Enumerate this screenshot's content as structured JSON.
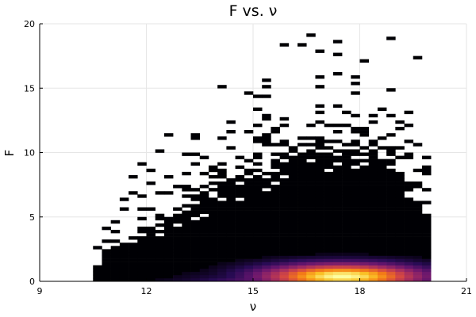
{
  "chart_data": {
    "type": "heatmap",
    "title": "F vs. ν",
    "xlabel": "ν",
    "ylabel": "F",
    "xlim": [
      9,
      21
    ],
    "ylim": [
      0,
      20
    ],
    "xticks": [
      9,
      12,
      15,
      18,
      21
    ],
    "yticks": [
      0,
      5,
      10,
      15,
      20
    ],
    "grid": true,
    "legend": "none",
    "colormap": "inferno",
    "colors": {
      "low": "#000004",
      "mid_low": "#420a68",
      "mid": "#932667",
      "mid_high": "#dd513a",
      "high": "#fca50a",
      "peak": "#fcffa4"
    },
    "density_model": {
      "x_bin_width": 0.25,
      "y_bin_width": 0.25,
      "x_support": [
        10.5,
        20
      ],
      "peak_point": [
        17.5,
        0.4
      ],
      "envelope": [
        {
          "x": 10.5,
          "f": 1.0
        },
        {
          "x": 11.0,
          "f": 2.5
        },
        {
          "x": 12.0,
          "f": 4.0
        },
        {
          "x": 13.0,
          "f": 5.5
        },
        {
          "x": 14.0,
          "f": 7.2
        },
        {
          "x": 15.0,
          "f": 8.5
        },
        {
          "x": 16.0,
          "f": 9.5
        },
        {
          "x": 17.0,
          "f": 10.4
        },
        {
          "x": 18.0,
          "f": 11.0
        },
        {
          "x": 19.0,
          "f": 9.2
        },
        {
          "x": 19.5,
          "f": 7.5
        },
        {
          "x": 20.0,
          "f": 5.5
        }
      ],
      "outliers_max_f": 19.8
    }
  }
}
